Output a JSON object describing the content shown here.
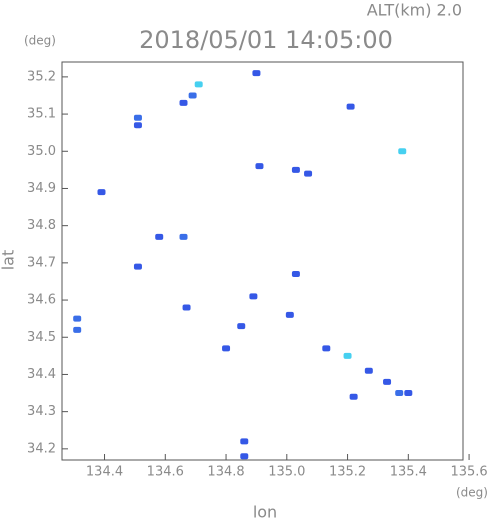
{
  "chart_data": {
    "type": "scatter",
    "subtitle": "ALT(km) 2.0",
    "title": "2018/05/01 14:05:00",
    "y_unit": "(deg)",
    "x_unit": "(deg)",
    "y_label": "lat",
    "x_label": "lon",
    "x": [
      134.71,
      134.69,
      134.66,
      134.51,
      134.51,
      134.9,
      135.21,
      135.38,
      134.91,
      135.03,
      135.07,
      134.39,
      134.58,
      134.66,
      134.51,
      135.03,
      134.67,
      134.89,
      134.31,
      134.31,
      134.85,
      134.8,
      135.2,
      135.27,
      135.33,
      135.37,
      135.4,
      135.22,
      134.86,
      134.86,
      135.01,
      135.13
    ],
    "y": [
      35.18,
      35.15,
      35.13,
      35.09,
      35.07,
      35.21,
      35.12,
      35.0,
      34.96,
      34.95,
      34.94,
      34.89,
      34.77,
      34.77,
      34.69,
      34.67,
      34.58,
      34.61,
      34.55,
      34.52,
      34.53,
      34.47,
      34.45,
      34.41,
      34.38,
      34.35,
      34.35,
      34.34,
      34.22,
      34.18,
      34.56,
      34.47
    ],
    "colors": [
      "#46d0f0",
      "#3a6ee8",
      "#3558e6",
      "#3a6ee8",
      "#3558e6",
      "#3558e6",
      "#3558e6",
      "#46d0f0",
      "#3558e6",
      "#3558e6",
      "#3558e6",
      "#3558e6",
      "#3558e6",
      "#3a6ee8",
      "#3558e6",
      "#3558e6",
      "#3558e6",
      "#3558e6",
      "#3a6ee8",
      "#3a6ee8",
      "#3558e6",
      "#3558e6",
      "#46d0f0",
      "#3558e6",
      "#3558e6",
      "#3a6ee8",
      "#3558e6",
      "#3558e6",
      "#3558e6",
      "#3558e6",
      "#3558e6",
      "#3558e6"
    ],
    "xlim": [
      134.26,
      135.58
    ],
    "ylim": [
      34.17,
      35.24
    ],
    "xticks": [
      134.4,
      134.6,
      134.8,
      {
        "value": 135,
        "label": "135.0"
      },
      135.2,
      135.4,
      135.6
    ],
    "yticks": [
      34.2,
      34.3,
      34.4,
      34.5,
      34.6,
      34.7,
      34.8,
      34.9,
      {
        "value": 35,
        "label": "35.0"
      },
      35.1,
      35.2
    ]
  }
}
